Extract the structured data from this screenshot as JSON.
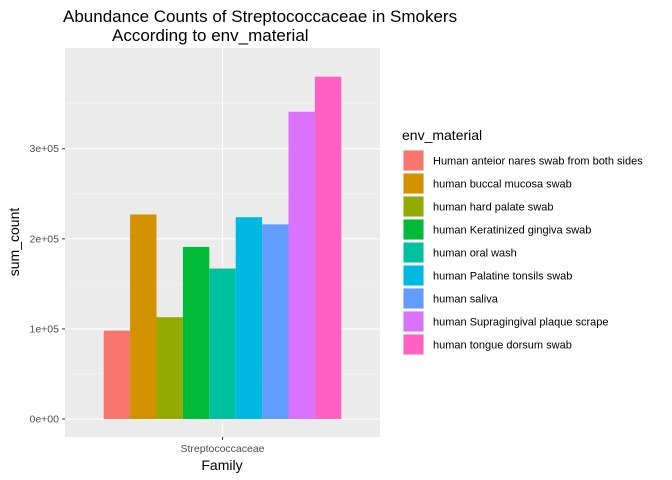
{
  "chart_data": {
    "type": "bar",
    "title_lines": [
      "Abundance Counts of Streptococcaceae in Smokers",
      "According to env_material"
    ],
    "xlabel": "Family",
    "ylabel": "sum_count",
    "categories": [
      "Streptococcaceae"
    ],
    "ylim": [
      0,
      397000
    ],
    "yticks": [
      {
        "value": 0,
        "label": "0e+00"
      },
      {
        "value": 100000,
        "label": "1e+05"
      },
      {
        "value": 200000,
        "label": "2e+05"
      },
      {
        "value": 300000,
        "label": "3e+05"
      }
    ],
    "grid": true,
    "legend_title": "env_material",
    "legend_position": "right",
    "series": [
      {
        "name": "Human anteior nares swab from both sides",
        "color": "#F8766D",
        "values": [
          98000
        ]
      },
      {
        "name": "human buccal mucosa swab",
        "color": "#D39200",
        "values": [
          227000
        ]
      },
      {
        "name": "human hard palate swab",
        "color": "#93AA00",
        "values": [
          113000
        ]
      },
      {
        "name": "human Keratinized gingiva swab",
        "color": "#00BA38",
        "values": [
          191000
        ]
      },
      {
        "name": "human oral wash",
        "color": "#00C19F",
        "values": [
          167000
        ]
      },
      {
        "name": "human Palatine tonsils swab",
        "color": "#00B9E3",
        "values": [
          224000
        ]
      },
      {
        "name": "human saliva",
        "color": "#619CFF",
        "values": [
          216000
        ]
      },
      {
        "name": "human Supragingival plaque scrape",
        "color": "#DB72FB",
        "values": [
          341000
        ]
      },
      {
        "name": "human tongue dorsum swab",
        "color": "#FF61C3",
        "values": [
          380000
        ]
      }
    ]
  }
}
